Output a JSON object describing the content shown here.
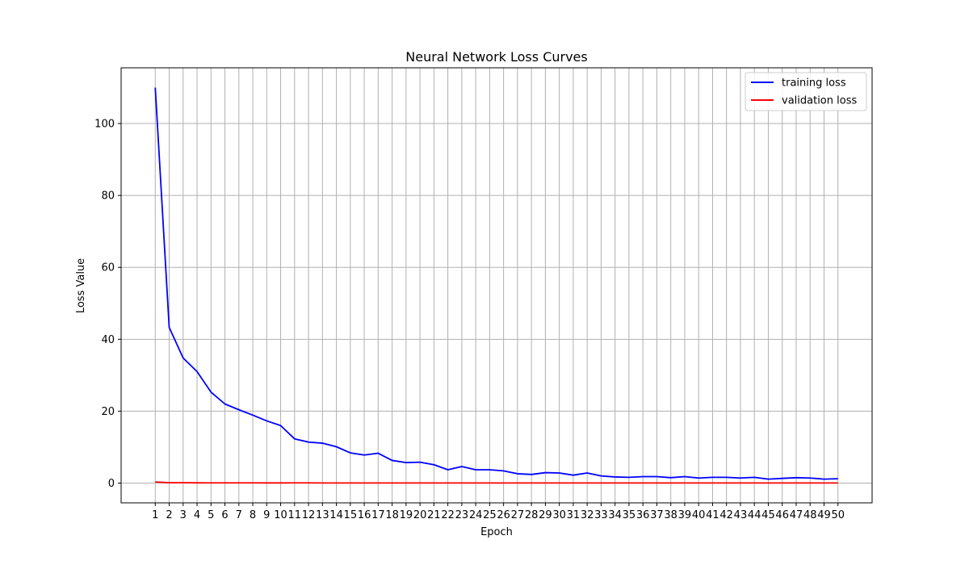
{
  "chart_data": {
    "type": "line",
    "title": "Neural Network Loss Curves",
    "xlabel": "Epoch",
    "ylabel": "Loss Value",
    "x": [
      1,
      2,
      3,
      4,
      5,
      6,
      7,
      8,
      9,
      10,
      11,
      12,
      13,
      14,
      15,
      16,
      17,
      18,
      19,
      20,
      21,
      22,
      23,
      24,
      25,
      26,
      27,
      28,
      29,
      30,
      31,
      32,
      33,
      34,
      35,
      36,
      37,
      38,
      39,
      40,
      41,
      42,
      43,
      44,
      45,
      46,
      47,
      48,
      49,
      50
    ],
    "xlim": [
      -1.45,
      52.45
    ],
    "ylim": [
      -5.5,
      115.5
    ],
    "yticks": [
      0,
      20,
      40,
      60,
      80,
      100
    ],
    "grid": true,
    "legend_position": "top-right",
    "series": [
      {
        "name": "training loss",
        "color": "#0000ff",
        "values": [
          110.0,
          43.3,
          34.8,
          31.0,
          25.3,
          22.0,
          20.4,
          18.9,
          17.3,
          16.0,
          12.3,
          11.4,
          11.1,
          10.1,
          8.4,
          7.8,
          8.3,
          6.3,
          5.7,
          5.8,
          5.1,
          3.7,
          4.6,
          3.7,
          3.7,
          3.4,
          2.6,
          2.4,
          2.9,
          2.8,
          2.2,
          2.8,
          2.0,
          1.7,
          1.6,
          1.8,
          1.8,
          1.5,
          1.8,
          1.4,
          1.6,
          1.6,
          1.4,
          1.6,
          1.1,
          1.3,
          1.5,
          1.4,
          1.1,
          1.2
        ]
      },
      {
        "name": "validation loss",
        "color": "#ff0000",
        "values": [
          0.3,
          0.12,
          0.12,
          0.07,
          0.05,
          0.06,
          0.05,
          0.05,
          0.04,
          0.04,
          0.05,
          0.05,
          0.03,
          0.03,
          0.03,
          0.03,
          0.03,
          0.03,
          0.02,
          0.02,
          0.02,
          0.02,
          0.02,
          0.02,
          0.02,
          0.02,
          0.02,
          0.02,
          0.02,
          0.02,
          0.02,
          0.02,
          0.02,
          0.02,
          0.02,
          0.02,
          0.02,
          0.02,
          0.02,
          0.02,
          0.02,
          0.02,
          0.02,
          0.02,
          0.02,
          0.02,
          0.02,
          0.02,
          0.02,
          0.02
        ]
      }
    ]
  }
}
